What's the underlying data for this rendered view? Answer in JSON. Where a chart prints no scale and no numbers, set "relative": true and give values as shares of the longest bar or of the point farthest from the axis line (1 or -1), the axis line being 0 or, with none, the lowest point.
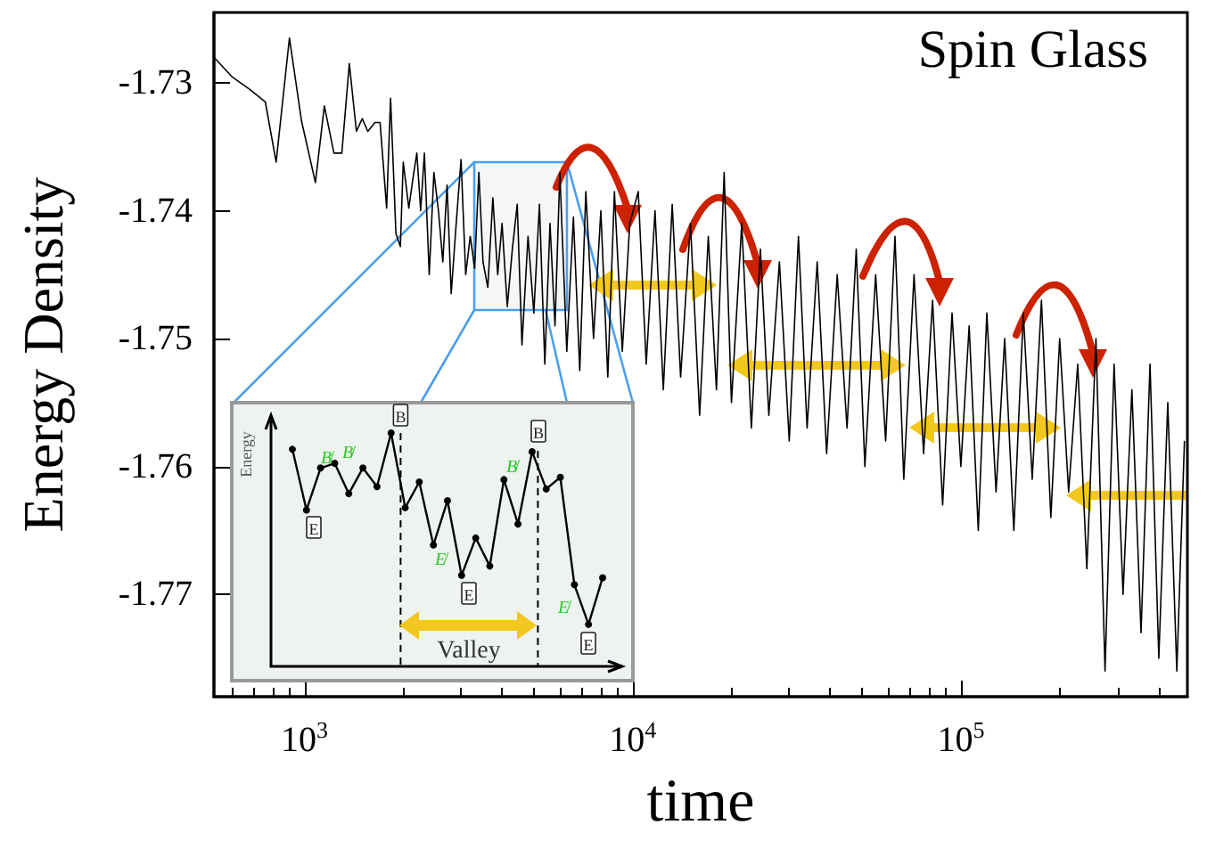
{
  "chart_data": [
    {
      "type": "line",
      "title": "Spin Glass",
      "xlabel": "time",
      "ylabel": "Energy Density",
      "log": "x",
      "grid": false,
      "marker": "none",
      "line_style": "solid",
      "xlim": [
        530,
        490000
      ],
      "xticks": [
        {
          "value": 1000,
          "label": "10$^{3}$"
        },
        {
          "value": 10000,
          "label": "10$^{4}$"
        },
        {
          "value": 100000,
          "label": "10$^{5}$"
        }
      ],
      "ylim": [
        -1.778,
        -1.7245
      ],
      "yticks": [
        -1.77,
        -1.76,
        -1.75,
        -1.74,
        -1.73
      ],
      "series": [
        {
          "color": "#000000",
          "x": [
            530,
            600,
            680,
            760,
            820,
            900,
            980,
            1080,
            1150,
            1230,
            1300,
            1370,
            1440,
            1500,
            1560,
            1640,
            1700,
            1780,
            1830,
            1900,
            1960,
            2000,
            2080,
            2140,
            2200,
            2260,
            2320,
            2400,
            2480,
            2560,
            2640,
            2720,
            2800,
            2900,
            3000,
            3100,
            3200,
            3300,
            3400,
            3500,
            3620,
            3750,
            3880,
            4000,
            4150,
            4300,
            4450,
            4600,
            4800,
            5000,
            5200,
            5400,
            5600,
            5800,
            6000,
            6300,
            6600,
            6900,
            7200,
            7600,
            8000,
            8400,
            8800,
            9300,
            9800,
            10400,
            11000,
            11700,
            12400,
            13200,
            14000,
            15000,
            16000,
            17000,
            18000,
            19000,
            20000,
            21500,
            23000,
            24500,
            26000,
            28000,
            30000,
            32000,
            34000,
            36500,
            39000,
            42000,
            45000,
            48000,
            51000,
            55000,
            59000,
            63000,
            67000,
            72000,
            77000,
            82000,
            88000,
            94000,
            100000,
            106000,
            113000,
            120000,
            128000,
            136000,
            145000,
            155000,
            165000,
            176000,
            188000,
            200000,
            213000,
            227000,
            242000,
            258000,
            275000,
            293000,
            312000,
            332000,
            354000,
            377000,
            401000,
            427000,
            455000,
            480000
          ],
          "values": [
            -1.728,
            -1.7295,
            -1.7305,
            -1.7315,
            -1.7362,
            -1.7265,
            -1.733,
            -1.7378,
            -1.7318,
            -1.7355,
            -1.7355,
            -1.7285,
            -1.7338,
            -1.7328,
            -1.7338,
            -1.7331,
            -1.7331,
            -1.7398,
            -1.7312,
            -1.7418,
            -1.7428,
            -1.7362,
            -1.7398,
            -1.7375,
            -1.7355,
            -1.74,
            -1.7355,
            -1.745,
            -1.737,
            -1.74,
            -1.744,
            -1.738,
            -1.7465,
            -1.741,
            -1.736,
            -1.745,
            -1.742,
            -1.7445,
            -1.737,
            -1.744,
            -1.746,
            -1.739,
            -1.745,
            -1.741,
            -1.7475,
            -1.743,
            -1.7395,
            -1.7505,
            -1.742,
            -1.748,
            -1.7395,
            -1.752,
            -1.741,
            -1.749,
            -1.737,
            -1.751,
            -1.7405,
            -1.7525,
            -1.7385,
            -1.75,
            -1.74,
            -1.753,
            -1.7385,
            -1.751,
            -1.741,
            -1.7385,
            -1.752,
            -1.74,
            -1.754,
            -1.7395,
            -1.753,
            -1.741,
            -1.756,
            -1.742,
            -1.754,
            -1.737,
            -1.755,
            -1.741,
            -1.757,
            -1.743,
            -1.756,
            -1.744,
            -1.758,
            -1.742,
            -1.757,
            -1.744,
            -1.759,
            -1.745,
            -1.757,
            -1.743,
            -1.76,
            -1.745,
            -1.758,
            -1.742,
            -1.761,
            -1.745,
            -1.759,
            -1.747,
            -1.763,
            -1.748,
            -1.76,
            -1.749,
            -1.765,
            -1.748,
            -1.762,
            -1.75,
            -1.765,
            -1.748,
            -1.761,
            -1.747,
            -1.764,
            -1.75,
            -1.762,
            -1.752,
            -1.768,
            -1.75,
            -1.776,
            -1.752,
            -1.77,
            -1.754,
            -1.773,
            -1.752,
            -1.775,
            -1.755,
            -1.776,
            -1.758
          ]
        }
      ]
    },
    {
      "type": "line",
      "relative": true,
      "ylabel": "Energy",
      "marker": "circle",
      "line_style": "solid",
      "categories": [
        null,
        null,
        null,
        null,
        null,
        null,
        null,
        null,
        null,
        null,
        null,
        null,
        null,
        null,
        null,
        null,
        null,
        null,
        null,
        null,
        null,
        null,
        null
      ],
      "annotations": [
        "Valley",
        "B",
        "B",
        "E",
        "E",
        "E",
        "B̸",
        "B̸",
        "B̸",
        "E̸",
        "E̸"
      ],
      "series": [
        {
          "color": "#000000",
          "values": [
            0.93,
            0.67,
            0.85,
            0.87,
            0.74,
            0.85,
            0.77,
            1,
            0.68,
            0.79,
            0.52,
            0.71,
            0.39,
            0.55,
            0.43,
            0.8,
            0.61,
            0.92,
            0.76,
            0.81,
            0.35,
            0.18,
            0.38
          ]
        }
      ]
    }
  ]
}
